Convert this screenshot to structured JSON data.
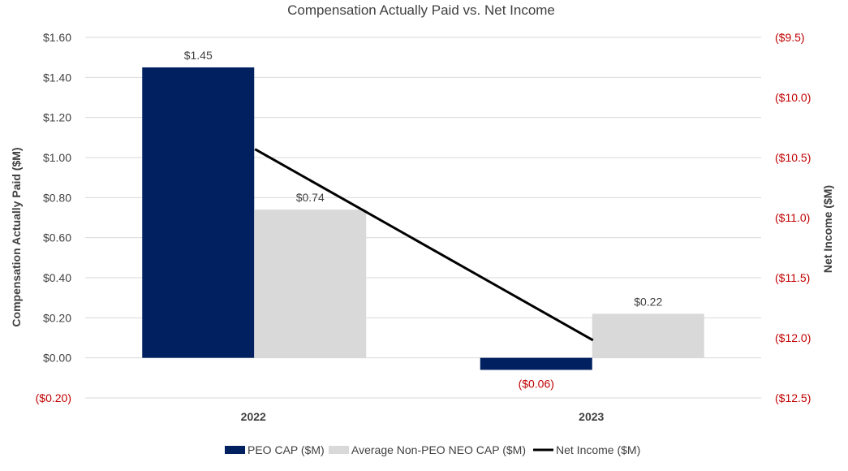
{
  "chart_data": {
    "type": "bar",
    "title": "Compensation Actually Paid vs. Net Income",
    "categories": [
      "2022",
      "2023"
    ],
    "ylabel": "Compensation Actually Paid ($M)",
    "y2label": "Net Income ($M)",
    "ylim": [
      -0.2,
      1.6
    ],
    "y2lim": [
      -12.5,
      -9.5
    ],
    "y_ticks": [
      1.6,
      1.4,
      1.2,
      1.0,
      0.8,
      0.6,
      0.4,
      0.2,
      0.0,
      -0.2
    ],
    "y_tick_labels": [
      "$1.60",
      "$1.40",
      "$1.20",
      "$1.00",
      "$0.80",
      "$0.60",
      "$0.40",
      "$0.20",
      "$0.00",
      "($0.20)"
    ],
    "y2_ticks": [
      -9.5,
      -10.0,
      -10.5,
      -11.0,
      -11.5,
      -12.0,
      -12.5
    ],
    "y2_tick_labels": [
      "($9.5)",
      "($10.0)",
      "($10.5)",
      "($11.0)",
      "($11.5)",
      "($12.0)",
      "($12.5)"
    ],
    "series": [
      {
        "name": "PEO CAP ($M)",
        "kind": "bar",
        "axis": "left",
        "color": "#002060",
        "values": [
          1.45,
          -0.06
        ],
        "labels": [
          "$1.45",
          "($0.06)"
        ]
      },
      {
        "name": "Average Non-PEO NEO CAP ($M)",
        "kind": "bar",
        "axis": "left",
        "color": "#d9d9d9",
        "values": [
          0.74,
          0.22
        ],
        "labels": [
          "$0.74",
          "$0.22"
        ]
      },
      {
        "name": "Net Income ($M)",
        "kind": "line",
        "axis": "right",
        "color": "#000000",
        "values": [
          -10.43,
          -12.02
        ]
      }
    ],
    "legend_position": "bottom",
    "grid": true
  }
}
